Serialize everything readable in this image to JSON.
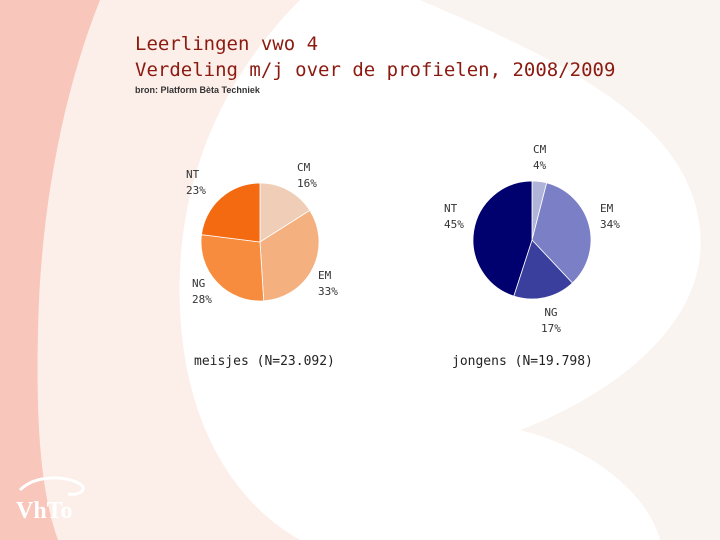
{
  "slide": {
    "title_line1": "Leerlingen vwo 4",
    "title_line2": "Verdeling m/j over de profielen, 2008/2009",
    "source": "bron: Platform Bèta Techniek",
    "logo_text": "VhTo"
  },
  "chart_data": [
    {
      "type": "pie",
      "title": "meisjes (N=23.092)",
      "slices": [
        {
          "label": "CM",
          "value": 16,
          "display": "16%",
          "color": "#efcdb6"
        },
        {
          "label": "EM",
          "value": 33,
          "display": "33%",
          "color": "#f4b07f"
        },
        {
          "label": "NG",
          "value": 28,
          "display": "28%",
          "color": "#f88c3e"
        },
        {
          "label": "NT",
          "value": 23,
          "display": "23%",
          "color": "#f46a10"
        }
      ]
    },
    {
      "type": "pie",
      "title": "jongens (N=19.798)",
      "slices": [
        {
          "label": "CM",
          "value": 4,
          "display": "4%",
          "color": "#b0b4d8"
        },
        {
          "label": "EM",
          "value": 34,
          "display": "34%",
          "color": "#7b80c6"
        },
        {
          "label": "NG",
          "value": 17,
          "display": "17%",
          "color": "#3a3f9e"
        },
        {
          "label": "NT",
          "value": 45,
          "display": "45%",
          "color": "#00006e"
        }
      ]
    }
  ]
}
